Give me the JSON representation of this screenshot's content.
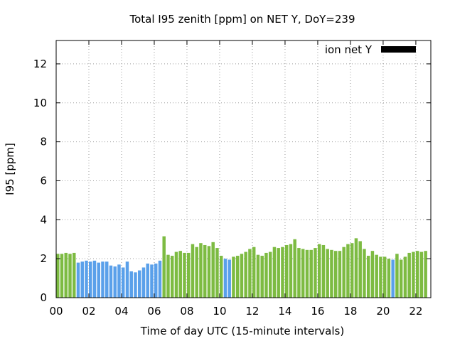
{
  "chart_data": {
    "type": "bar",
    "title": "Total I95 zenith [ppm] on NET Y, DoY=239",
    "xlabel": "Time of day UTC (15-minute intervals)",
    "ylabel": "I95 [ppm]",
    "xlim": [
      0,
      22.917
    ],
    "ylim": [
      0,
      13.2
    ],
    "grid": true,
    "legend": {
      "position": "top-right",
      "label": "ion net Y",
      "swatch_color": "#000000"
    },
    "x_ticks": [
      0,
      2,
      4,
      6,
      8,
      10,
      12,
      14,
      16,
      18,
      20,
      22
    ],
    "x_tick_labels": [
      "00",
      "02",
      "04",
      "06",
      "08",
      "10",
      "12",
      "14",
      "16",
      "18",
      "20",
      "22"
    ],
    "y_ticks": [
      0,
      2,
      4,
      6,
      8,
      10,
      12
    ],
    "y_tick_labels": [
      "0",
      "2",
      "4",
      "6",
      "8",
      "10",
      "12"
    ],
    "colors": {
      "green": "#7dbb42",
      "blue": "#5aa0ea"
    },
    "interval_hours": 0.25,
    "values": [
      2.25,
      2.25,
      2.3,
      2.25,
      2.3,
      1.8,
      1.85,
      1.9,
      1.85,
      1.9,
      1.8,
      1.85,
      1.85,
      1.65,
      1.6,
      1.7,
      1.55,
      1.85,
      1.35,
      1.3,
      1.4,
      1.55,
      1.75,
      1.7,
      1.75,
      1.9,
      3.15,
      2.2,
      2.15,
      2.35,
      2.4,
      2.3,
      2.3,
      2.75,
      2.6,
      2.8,
      2.7,
      2.65,
      2.85,
      2.55,
      2.15,
      2.0,
      1.95,
      2.1,
      2.15,
      2.25,
      2.35,
      2.5,
      2.6,
      2.2,
      2.15,
      2.3,
      2.35,
      2.6,
      2.55,
      2.6,
      2.7,
      2.75,
      3.0,
      2.55,
      2.5,
      2.45,
      2.45,
      2.55,
      2.75,
      2.7,
      2.5,
      2.45,
      2.4,
      2.4,
      2.6,
      2.75,
      2.8,
      3.05,
      2.9,
      2.5,
      2.15,
      2.4,
      2.2,
      2.1,
      2.1,
      2.0,
      1.95,
      2.25,
      1.95,
      2.1,
      2.3,
      2.35,
      2.4,
      2.35,
      2.4
    ],
    "bar_colors": [
      "green",
      "green",
      "green",
      "green",
      "green",
      "blue",
      "blue",
      "blue",
      "blue",
      "blue",
      "blue",
      "blue",
      "blue",
      "blue",
      "blue",
      "blue",
      "blue",
      "blue",
      "blue",
      "blue",
      "blue",
      "blue",
      "blue",
      "blue",
      "blue",
      "blue",
      "green",
      "green",
      "green",
      "green",
      "green",
      "green",
      "green",
      "green",
      "green",
      "green",
      "green",
      "green",
      "green",
      "green",
      "green",
      "blue",
      "blue",
      "green",
      "green",
      "green",
      "green",
      "green",
      "green",
      "green",
      "green",
      "green",
      "green",
      "green",
      "green",
      "green",
      "green",
      "green",
      "green",
      "green",
      "green",
      "green",
      "green",
      "green",
      "green",
      "green",
      "green",
      "green",
      "green",
      "green",
      "green",
      "green",
      "green",
      "green",
      "green",
      "green",
      "green",
      "green",
      "green",
      "green",
      "green",
      "green",
      "blue",
      "green",
      "green",
      "green",
      "green",
      "green",
      "green",
      "green",
      "green"
    ]
  }
}
